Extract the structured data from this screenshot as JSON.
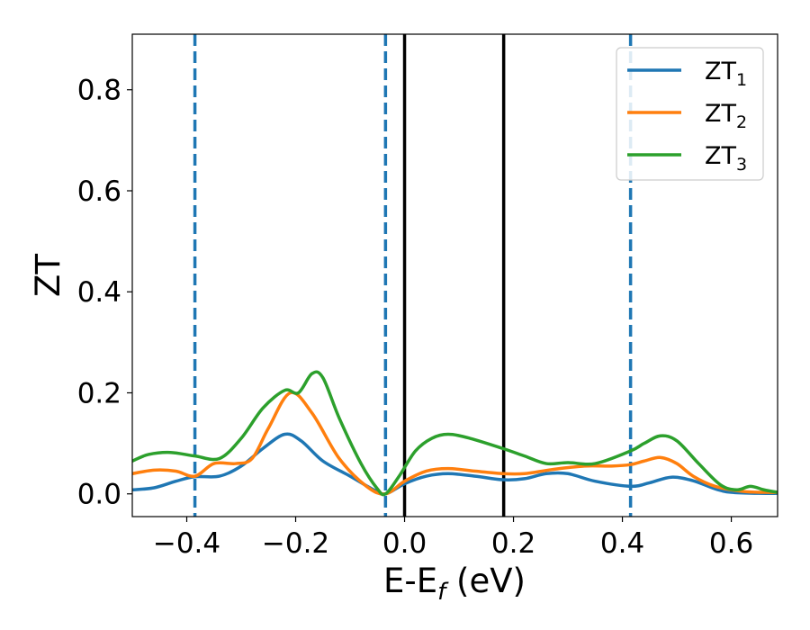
{
  "chart_data": {
    "type": "line",
    "xlabel": {
      "main": "E-E",
      "sub": "f",
      "rest": " (eV)"
    },
    "ylabel": "ZT",
    "xlim": [
      -0.5,
      0.685
    ],
    "ylim": [
      -0.045,
      0.91
    ],
    "xticks": [
      {
        "value": -0.4,
        "label": "−0.4"
      },
      {
        "value": -0.2,
        "label": "−0.2"
      },
      {
        "value": 0.0,
        "label": "0.0"
      },
      {
        "value": 0.2,
        "label": "0.2"
      },
      {
        "value": 0.4,
        "label": "0.4"
      },
      {
        "value": 0.6,
        "label": "0.6"
      }
    ],
    "yticks": [
      {
        "value": 0.0,
        "label": "0.0"
      },
      {
        "value": 0.2,
        "label": "0.2"
      },
      {
        "value": 0.4,
        "label": "0.4"
      },
      {
        "value": 0.6,
        "label": "0.6"
      },
      {
        "value": 0.8,
        "label": "0.8"
      }
    ],
    "grid": false,
    "legend_position": "top-right",
    "vlines": [
      {
        "x": -0.385,
        "style": "dashed",
        "color": "#1f77b4"
      },
      {
        "x": -0.035,
        "style": "dashed",
        "color": "#1f77b4"
      },
      {
        "x": 0.0,
        "style": "solid",
        "color": "#000000"
      },
      {
        "x": 0.182,
        "style": "solid",
        "color": "#000000"
      },
      {
        "x": 0.415,
        "style": "dashed",
        "color": "#1f77b4"
      }
    ],
    "series": [
      {
        "name": "ZT",
        "sub": "1",
        "color": "#1f77b4",
        "x": [
          -0.5,
          -0.46,
          -0.42,
          -0.385,
          -0.34,
          -0.3,
          -0.26,
          -0.22,
          -0.19,
          -0.15,
          -0.1,
          -0.06,
          -0.035,
          0.0,
          0.04,
          0.08,
          0.13,
          0.18,
          0.22,
          0.26,
          0.3,
          0.35,
          0.415,
          0.45,
          0.49,
          0.53,
          0.57,
          0.6,
          0.65,
          0.685
        ],
        "y": [
          0.008,
          0.012,
          0.025,
          0.034,
          0.035,
          0.055,
          0.09,
          0.118,
          0.105,
          0.065,
          0.035,
          0.01,
          0.0,
          0.02,
          0.035,
          0.04,
          0.035,
          0.028,
          0.03,
          0.04,
          0.04,
          0.025,
          0.015,
          0.022,
          0.033,
          0.026,
          0.01,
          0.003,
          0.001,
          0.001
        ]
      },
      {
        "name": "ZT",
        "sub": "2",
        "color": "#ff7f0e",
        "x": [
          -0.5,
          -0.46,
          -0.42,
          -0.385,
          -0.35,
          -0.31,
          -0.28,
          -0.25,
          -0.21,
          -0.17,
          -0.12,
          -0.07,
          -0.035,
          0.0,
          0.04,
          0.08,
          0.13,
          0.18,
          0.22,
          0.27,
          0.33,
          0.38,
          0.415,
          0.44,
          0.47,
          0.5,
          0.53,
          0.57,
          0.62,
          0.66,
          0.685
        ],
        "y": [
          0.04,
          0.047,
          0.045,
          0.035,
          0.06,
          0.06,
          0.07,
          0.13,
          0.2,
          0.16,
          0.07,
          0.015,
          0.0,
          0.025,
          0.045,
          0.05,
          0.045,
          0.04,
          0.04,
          0.048,
          0.055,
          0.055,
          0.058,
          0.065,
          0.072,
          0.06,
          0.035,
          0.015,
          0.005,
          0.003,
          0.003
        ]
      },
      {
        "name": "ZT",
        "sub": "3",
        "color": "#2ca02c",
        "x": [
          -0.5,
          -0.47,
          -0.43,
          -0.385,
          -0.34,
          -0.3,
          -0.26,
          -0.22,
          -0.195,
          -0.17,
          -0.15,
          -0.12,
          -0.08,
          -0.05,
          -0.035,
          -0.01,
          0.02,
          0.05,
          0.08,
          0.12,
          0.18,
          0.22,
          0.26,
          0.3,
          0.35,
          0.415,
          0.44,
          0.47,
          0.5,
          0.54,
          0.58,
          0.61,
          0.635,
          0.66,
          0.685
        ],
        "y": [
          0.065,
          0.078,
          0.082,
          0.075,
          0.07,
          0.11,
          0.17,
          0.205,
          0.2,
          0.238,
          0.23,
          0.15,
          0.06,
          0.01,
          0.0,
          0.035,
          0.085,
          0.11,
          0.118,
          0.11,
          0.09,
          0.075,
          0.06,
          0.062,
          0.06,
          0.085,
          0.1,
          0.115,
          0.105,
          0.06,
          0.018,
          0.008,
          0.015,
          0.008,
          0.003
        ]
      }
    ]
  }
}
